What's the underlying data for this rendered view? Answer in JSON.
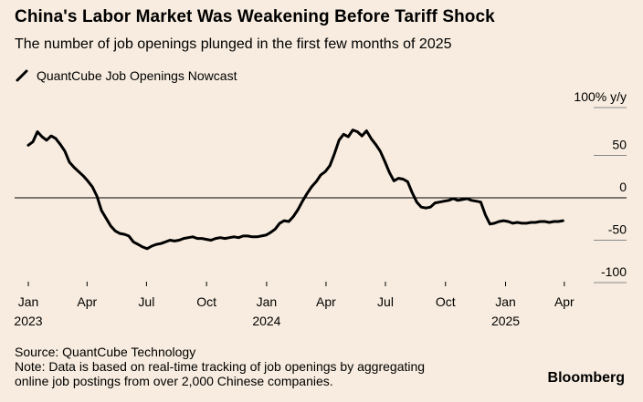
{
  "title": "China's Labor Market Was Weakening Before Tariff Shock",
  "subtitle": "The number of job openings plunged in the first few months of 2025",
  "legend": {
    "label": "QuantCube Job Openings Nowcast"
  },
  "source": "Source: QuantCube Technology",
  "note_line1": "Note: Data is based on real-time tracking of job openings by aggregating",
  "note_line2": "online job postings from over 2,000 Chinese companies.",
  "brand": "Bloomberg",
  "colors": {
    "background": "#f7ecdf",
    "line": "#000000",
    "grid": "#8a8a8a"
  },
  "chart_data": {
    "type": "line",
    "ylabel": "100% y/y",
    "ylim": [
      -100,
      100
    ],
    "yticks": [
      {
        "value": 50,
        "label": "50"
      },
      {
        "value": 0,
        "label": "0"
      },
      {
        "value": -50,
        "label": "-50"
      },
      {
        "value": -100,
        "label": "-100"
      }
    ],
    "xlim": [
      "2022-12-25",
      "2025-04-18"
    ],
    "xticks": [
      {
        "date": "2023-01-01",
        "label": "Jan",
        "year": "2023"
      },
      {
        "date": "2023-04-01",
        "label": "Apr",
        "year": ""
      },
      {
        "date": "2023-07-01",
        "label": "Jul",
        "year": ""
      },
      {
        "date": "2023-10-01",
        "label": "Oct",
        "year": ""
      },
      {
        "date": "2024-01-01",
        "label": "Jan",
        "year": "2024"
      },
      {
        "date": "2024-04-01",
        "label": "Apr",
        "year": ""
      },
      {
        "date": "2024-07-01",
        "label": "Jul",
        "year": ""
      },
      {
        "date": "2024-10-01",
        "label": "Oct",
        "year": ""
      },
      {
        "date": "2025-01-01",
        "label": "Jan",
        "year": "2025"
      },
      {
        "date": "2025-04-01",
        "label": "Apr",
        "year": ""
      }
    ],
    "series": [
      {
        "name": "QuantCube Job Openings Nowcast",
        "x": [
          "2023-01-01",
          "2023-01-08",
          "2023-01-15",
          "2023-01-22",
          "2023-01-29",
          "2023-02-05",
          "2023-02-12",
          "2023-02-19",
          "2023-02-26",
          "2023-03-05",
          "2023-03-12",
          "2023-03-19",
          "2023-03-26",
          "2023-04-02",
          "2023-04-09",
          "2023-04-16",
          "2023-04-23",
          "2023-04-30",
          "2023-05-07",
          "2023-05-14",
          "2023-05-21",
          "2023-05-28",
          "2023-06-04",
          "2023-06-11",
          "2023-06-18",
          "2023-06-25",
          "2023-07-02",
          "2023-07-09",
          "2023-07-16",
          "2023-07-23",
          "2023-07-30",
          "2023-08-06",
          "2023-08-13",
          "2023-08-20",
          "2023-08-27",
          "2023-09-03",
          "2023-09-10",
          "2023-09-17",
          "2023-09-24",
          "2023-10-01",
          "2023-10-08",
          "2023-10-15",
          "2023-10-22",
          "2023-10-29",
          "2023-11-05",
          "2023-11-12",
          "2023-11-19",
          "2023-11-26",
          "2023-12-03",
          "2023-12-10",
          "2023-12-17",
          "2023-12-24",
          "2023-12-31",
          "2024-01-07",
          "2024-01-14",
          "2024-01-21",
          "2024-01-28",
          "2024-02-04",
          "2024-02-11",
          "2024-02-18",
          "2024-02-25",
          "2024-03-03",
          "2024-03-10",
          "2024-03-17",
          "2024-03-24",
          "2024-03-31",
          "2024-04-07",
          "2024-04-14",
          "2024-04-21",
          "2024-04-28",
          "2024-05-05",
          "2024-05-12",
          "2024-05-19",
          "2024-05-26",
          "2024-06-02",
          "2024-06-09",
          "2024-06-16",
          "2024-06-23",
          "2024-06-30",
          "2024-07-07",
          "2024-07-14",
          "2024-07-21",
          "2024-07-28",
          "2024-08-04",
          "2024-08-11",
          "2024-08-18",
          "2024-08-25",
          "2024-09-01",
          "2024-09-08",
          "2024-09-15",
          "2024-09-22",
          "2024-09-29",
          "2024-10-06",
          "2024-10-13",
          "2024-10-20",
          "2024-10-27",
          "2024-11-03",
          "2024-11-10",
          "2024-11-17",
          "2024-11-24",
          "2024-12-01",
          "2024-12-08",
          "2024-12-15",
          "2024-12-22",
          "2024-12-29",
          "2025-01-05",
          "2025-01-12",
          "2025-01-19",
          "2025-01-26",
          "2025-02-02",
          "2025-02-09",
          "2025-02-16",
          "2025-02-23",
          "2025-03-02",
          "2025-03-09",
          "2025-03-16",
          "2025-03-23",
          "2025-03-30"
        ],
        "y": [
          62,
          66,
          78,
          72,
          68,
          73,
          70,
          63,
          55,
          42,
          36,
          31,
          26,
          20,
          13,
          2,
          -15,
          -24,
          -33,
          -39,
          -42,
          -43,
          -45,
          -52,
          -55,
          -58,
          -60,
          -57,
          -55,
          -54,
          -52,
          -50,
          -51,
          -50,
          -48,
          -47,
          -46,
          -48,
          -48,
          -49,
          -50,
          -48,
          -47,
          -48,
          -47,
          -46,
          -47,
          -45,
          -45,
          -46,
          -46,
          -45,
          -44,
          -41,
          -37,
          -30,
          -27,
          -28,
          -22,
          -14,
          -4,
          5,
          13,
          19,
          27,
          31,
          38,
          52,
          68,
          75,
          72,
          80,
          78,
          73,
          79,
          70,
          63,
          55,
          43,
          30,
          20,
          23,
          22,
          19,
          6,
          -5,
          -11,
          -12,
          -11,
          -6,
          -5,
          -4,
          -3,
          -1,
          -3,
          -2,
          -1,
          -3,
          -4,
          -5,
          -20,
          -31,
          -30,
          -28,
          -27,
          -28,
          -30,
          -29,
          -30,
          -30,
          -29,
          -29,
          -28,
          -28,
          -29,
          -28,
          -28,
          -27
        ]
      }
    ]
  }
}
